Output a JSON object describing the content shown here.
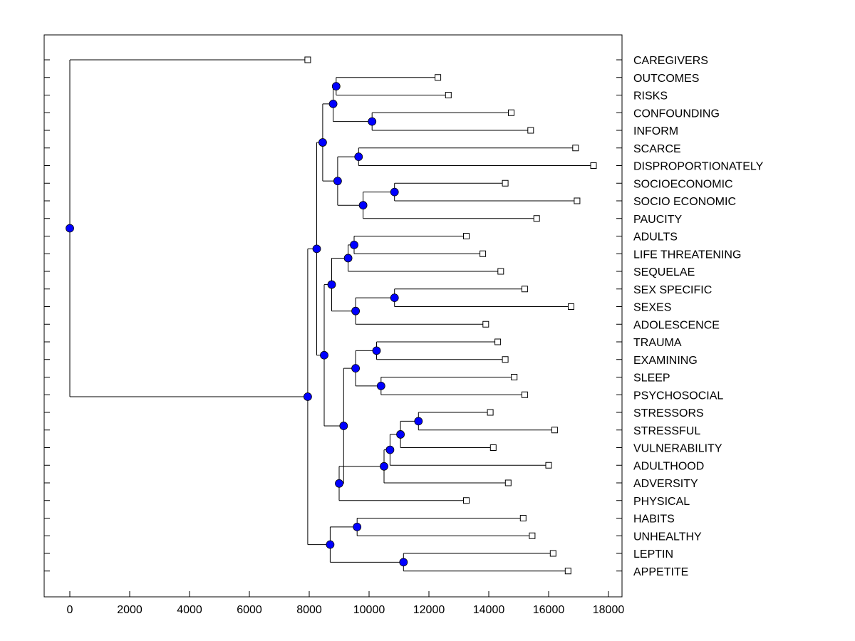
{
  "chart_data": {
    "type": "dendrogram",
    "orientation": "horizontal",
    "xlim": [
      -900,
      18300
    ],
    "xticks": [
      0,
      2000,
      4000,
      6000,
      8000,
      10000,
      12000,
      14000,
      16000,
      18000
    ],
    "xtick_labels": [
      "0",
      "2000",
      "4000",
      "6000",
      "8000",
      "10000",
      "12000",
      "14000",
      "16000",
      "18000"
    ],
    "colors": {
      "node_fill": "#0000ff",
      "line": "#000000",
      "leaf_marker": "#ffffff"
    },
    "leaves": [
      {
        "label": "CAREGIVERS",
        "x": 7950
      },
      {
        "label": "OUTCOMES",
        "x": 12300
      },
      {
        "label": "RISKS",
        "x": 12650
      },
      {
        "label": "CONFOUNDING",
        "x": 14750
      },
      {
        "label": "INFORM",
        "x": 15400
      },
      {
        "label": "SCARCE",
        "x": 16900
      },
      {
        "label": "DISPROPORTIONATELY",
        "x": 17500
      },
      {
        "label": "SOCIOECONOMIC",
        "x": 14550
      },
      {
        "label": "SOCIO ECONOMIC",
        "x": 16950
      },
      {
        "label": "PAUCITY",
        "x": 15600
      },
      {
        "label": "ADULTS",
        "x": 13250
      },
      {
        "label": "LIFE THREATENING",
        "x": 13800
      },
      {
        "label": "SEQUELAE",
        "x": 14400
      },
      {
        "label": "SEX SPECIFIC",
        "x": 15200
      },
      {
        "label": "SEXES",
        "x": 16750
      },
      {
        "label": "ADOLESCENCE",
        "x": 13900
      },
      {
        "label": "TRAUMA",
        "x": 14300
      },
      {
        "label": "EXAMINING",
        "x": 14550
      },
      {
        "label": "SLEEP",
        "x": 14850
      },
      {
        "label": "PSYCHOSOCIAL",
        "x": 15200
      },
      {
        "label": "STRESSORS",
        "x": 14050
      },
      {
        "label": "STRESSFUL",
        "x": 16200
      },
      {
        "label": "VULNERABILITY",
        "x": 14150
      },
      {
        "label": "ADULTHOOD",
        "x": 16000
      },
      {
        "label": "ADVERSITY",
        "x": 14650
      },
      {
        "label": "PHYSICAL",
        "x": 13250
      },
      {
        "label": "HABITS",
        "x": 15150
      },
      {
        "label": "UNHEALTHY",
        "x": 15450
      },
      {
        "label": "LEPTIN",
        "x": 16150
      },
      {
        "label": "APPETITE",
        "x": 16650
      }
    ],
    "nodes": [
      {
        "id": "n1",
        "x": 8900,
        "children": [
          "OUTCOMES",
          "RISKS"
        ]
      },
      {
        "id": "n2",
        "x": 10100,
        "children": [
          "CONFOUNDING",
          "INFORM"
        ]
      },
      {
        "id": "n3",
        "x": 8800,
        "children": [
          "n1",
          "n2"
        ]
      },
      {
        "id": "n4",
        "x": 9650,
        "children": [
          "SCARCE",
          "DISPROPORTIONATELY"
        ]
      },
      {
        "id": "n5",
        "x": 10850,
        "children": [
          "SOCIOECONOMIC",
          "SOCIO ECONOMIC"
        ]
      },
      {
        "id": "n6",
        "x": 9800,
        "children": [
          "n5",
          "PAUCITY"
        ]
      },
      {
        "id": "n7",
        "x": 8950,
        "children": [
          "n4",
          "n6"
        ]
      },
      {
        "id": "n8",
        "x": 8450,
        "children": [
          "n3",
          "n7"
        ]
      },
      {
        "id": "n9",
        "x": 9500,
        "children": [
          "ADULTS",
          "LIFE THREATENING"
        ]
      },
      {
        "id": "n10",
        "x": 9300,
        "children": [
          "n9",
          "SEQUELAE"
        ]
      },
      {
        "id": "n11",
        "x": 10850,
        "children": [
          "SEX SPECIFIC",
          "SEXES"
        ]
      },
      {
        "id": "n12",
        "x": 9550,
        "children": [
          "n11",
          "ADOLESCENCE"
        ]
      },
      {
        "id": "n13",
        "x": 8750,
        "children": [
          "n10",
          "n12"
        ]
      },
      {
        "id": "n14",
        "x": 10250,
        "children": [
          "TRAUMA",
          "EXAMINING"
        ]
      },
      {
        "id": "n15",
        "x": 10400,
        "children": [
          "SLEEP",
          "PSYCHOSOCIAL"
        ]
      },
      {
        "id": "n16",
        "x": 9550,
        "children": [
          "n14",
          "n15"
        ]
      },
      {
        "id": "n17",
        "x": 11650,
        "children": [
          "STRESSORS",
          "STRESSFUL"
        ]
      },
      {
        "id": "n18",
        "x": 11050,
        "children": [
          "n17",
          "VULNERABILITY"
        ]
      },
      {
        "id": "n19",
        "x": 10700,
        "children": [
          "n18",
          "ADULTHOOD"
        ]
      },
      {
        "id": "n20",
        "x": 10500,
        "children": [
          "n19",
          "ADVERSITY"
        ]
      },
      {
        "id": "n21",
        "x": 9000,
        "children": [
          "n20",
          "PHYSICAL"
        ]
      },
      {
        "id": "n22",
        "x": 9150,
        "children": [
          "n16",
          "n21"
        ]
      },
      {
        "id": "n23",
        "x": 8500,
        "children": [
          "n13",
          "n22"
        ]
      },
      {
        "id": "n24",
        "x": 8250,
        "children": [
          "n8",
          "n23"
        ]
      },
      {
        "id": "n25",
        "x": 9600,
        "children": [
          "HABITS",
          "UNHEALTHY"
        ]
      },
      {
        "id": "n26",
        "x": 11150,
        "children": [
          "LEPTIN",
          "APPETITE"
        ]
      },
      {
        "id": "n27",
        "x": 8700,
        "children": [
          "n25",
          "n26"
        ]
      },
      {
        "id": "n28",
        "x": 7950,
        "children": [
          "n24",
          "n27"
        ]
      },
      {
        "id": "n29",
        "x": 0,
        "children": [
          "CAREGIVERS",
          "n28"
        ]
      }
    ]
  }
}
